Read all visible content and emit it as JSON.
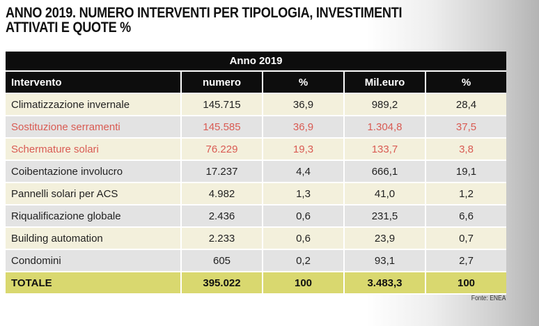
{
  "title_lines": [
    "ANNO 2019. NUMERO INTERVENTI PER TIPOLOGIA, INVESTIMENTI",
    "ATTIVATI E QUOTE %"
  ],
  "source": "Fonte: ENEA",
  "chart_data": {
    "type": "table",
    "title": "ANNO 2019. NUMERO INTERVENTI PER TIPOLOGIA, INVESTIMENTI ATTIVATI E QUOTE %",
    "group_header": "Anno 2019",
    "columns": [
      "Intervento",
      "numero",
      "%",
      "Mil.euro",
      "%"
    ],
    "rows": [
      [
        "Climatizzazione invernale",
        "145.715",
        "36,9",
        "989,2",
        "28,4"
      ],
      [
        "Sostituzione serramenti",
        "145.585",
        "36,9",
        "1.304,8",
        "37,5"
      ],
      [
        "Schermature solari",
        "76.229",
        "19,3",
        "133,7",
        "3,8"
      ],
      [
        "Coibentazione involucro",
        "17.237",
        "4,4",
        "666,1",
        "19,1"
      ],
      [
        "Pannelli solari per ACS",
        "4.982",
        "1,3",
        "41,0",
        "1,2"
      ],
      [
        "Riqualificazione globale",
        "2.436",
        "0,6",
        "231,5",
        "6,6"
      ],
      [
        "Building automation",
        "2.233",
        "0,6",
        "23,9",
        "0,7"
      ],
      [
        "Condomini",
        "605",
        "0,2",
        "93,1",
        "2,7"
      ]
    ],
    "highlighted_rows": [
      1,
      2
    ],
    "total": [
      "TOTALE",
      "395.022",
      "100",
      "3.483,3",
      "100"
    ],
    "colors": {
      "header_bg": "#0d0d0d",
      "row_light": "#f3f0dc",
      "row_grey": "#e3e3e3",
      "highlight_text": "#d95b53",
      "total_bg": "#d9d86f"
    }
  }
}
